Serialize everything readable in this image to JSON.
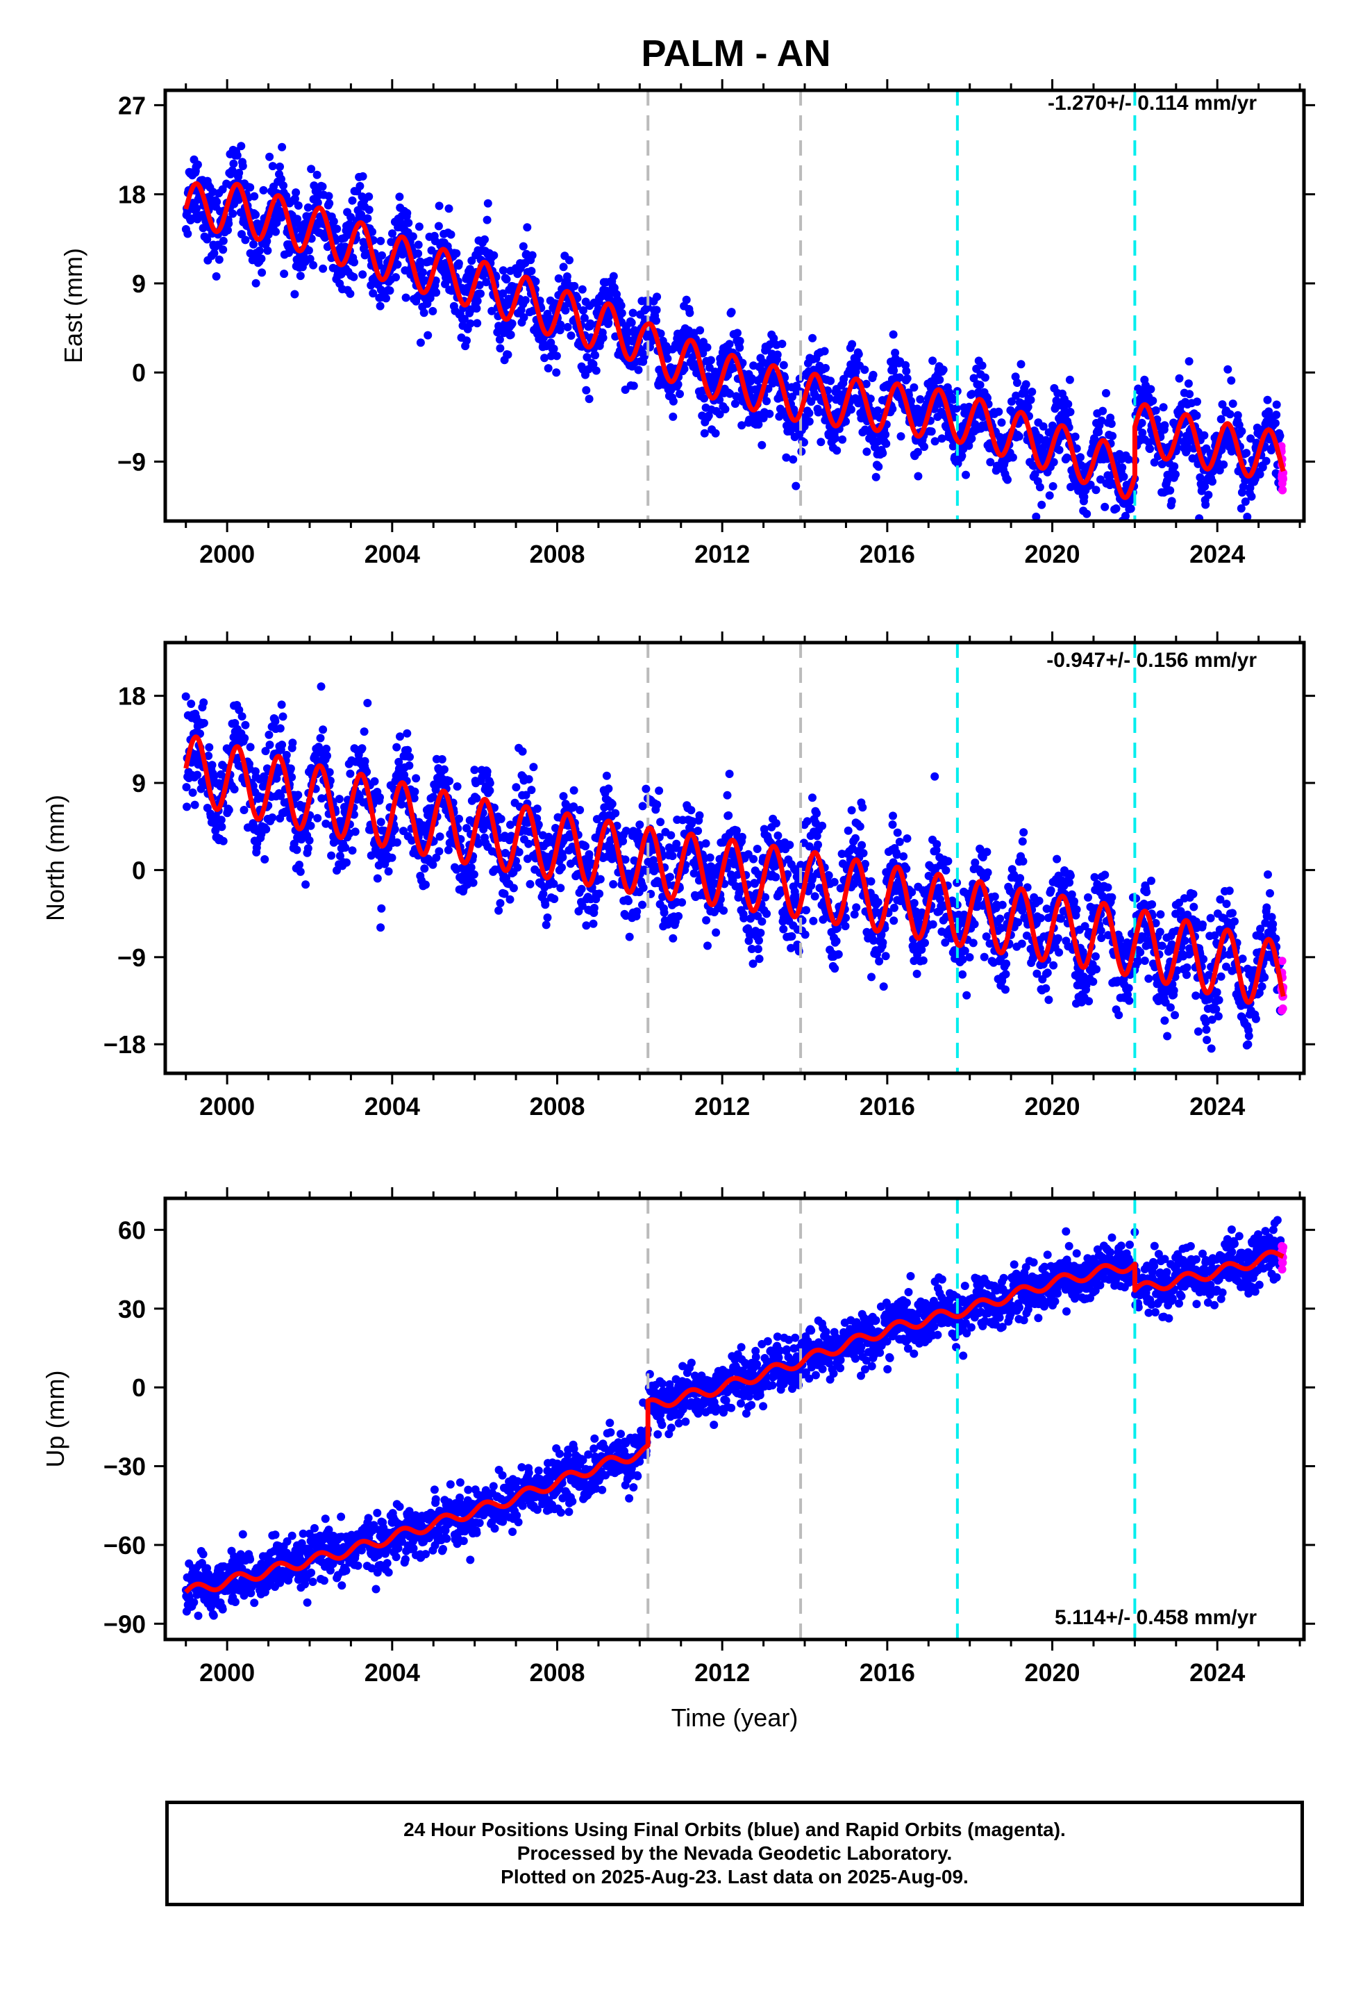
{
  "title": "PALM - AN",
  "colors": {
    "final_orbits": "#0000ff",
    "rapid_orbits": "#ff00ff",
    "model": "#ff0000",
    "antenna_change": "#bbbbbb",
    "event": "#00eeee"
  },
  "footer": {
    "line1": "24 Hour Positions Using Final Orbits (blue) and Rapid Orbits (magenta).",
    "line2": "Processed by the Nevada Geodetic Laboratory.",
    "line3": "Plotted on 2025-Aug-23. Last data on 2025-Aug-09."
  },
  "chart_data": [
    {
      "type": "scatter",
      "component": "east",
      "ylabel": "East (mm)",
      "xlabel": "",
      "xlim": [
        1998.5,
        2026.1
      ],
      "ylim": [
        -15,
        28.5
      ],
      "xticks": [
        2000,
        2004,
        2008,
        2012,
        2016,
        2020,
        2024
      ],
      "yticks": [
        -9,
        0,
        9,
        18,
        27
      ],
      "rate_label": "-1.270+/- 0.114 mm/yr",
      "data_start": 1999.0,
      "data_end": 2025.6,
      "dashed_lines": [
        {
          "x": 2010.2,
          "color": "#bbbbbb"
        },
        {
          "x": 2013.9,
          "color": "#bbbbbb"
        },
        {
          "x": 2017.7,
          "color": "#00eeee"
        },
        {
          "x": 2022.0,
          "color": "#00eeee"
        }
      ],
      "model_trend": [
        [
          1999.0,
          16.5
        ],
        [
          2000.0,
          16.8
        ],
        [
          2002.0,
          14.5
        ],
        [
          2004.0,
          11.5
        ],
        [
          2006.0,
          9.0
        ],
        [
          2008.0,
          6.0
        ],
        [
          2010.0,
          3.5
        ],
        [
          2010.2,
          2.5
        ],
        [
          2012.0,
          -0.5
        ],
        [
          2013.9,
          -2.5
        ],
        [
          2016.0,
          -3.5
        ],
        [
          2017.7,
          -4.5
        ],
        [
          2020.0,
          -7.5
        ],
        [
          2022.0,
          -10.5
        ],
        [
          2022.0,
          -5.5
        ],
        [
          2024.0,
          -7.5
        ],
        [
          2025.6,
          -8.5
        ]
      ],
      "seasonal_amplitude": 2.5,
      "scatter_sd": 2.0
    },
    {
      "type": "scatter",
      "component": "north",
      "ylabel": "North (mm)",
      "xlabel": "",
      "xlim": [
        1998.5,
        2026.1
      ],
      "ylim": [
        -21,
        23.5
      ],
      "xticks": [
        2000,
        2004,
        2008,
        2012,
        2016,
        2020,
        2024
      ],
      "yticks": [
        -18,
        -9,
        0,
        9,
        18
      ],
      "rate_label": "-0.947+/- 0.156 mm/yr",
      "data_start": 1999.0,
      "data_end": 2025.6,
      "dashed_lines": [
        {
          "x": 2010.2,
          "color": "#bbbbbb"
        },
        {
          "x": 2013.9,
          "color": "#bbbbbb"
        },
        {
          "x": 2017.7,
          "color": "#00eeee"
        },
        {
          "x": 2022.0,
          "color": "#00eeee"
        }
      ],
      "model_trend": [
        [
          1999.0,
          10.5
        ],
        [
          2002.0,
          7.5
        ],
        [
          2006.0,
          4.0
        ],
        [
          2010.0,
          1.0
        ],
        [
          2014.0,
          -1.5
        ],
        [
          2018.0,
          -4.5
        ],
        [
          2022.0,
          -7.5
        ],
        [
          2025.6,
          -11.0
        ]
      ],
      "seasonal_amplitude": 3.5,
      "scatter_sd": 2.5
    },
    {
      "type": "scatter",
      "component": "up",
      "ylabel": "Up (mm)",
      "xlabel": "Time (year)",
      "xlim": [
        1998.5,
        2026.1
      ],
      "ylim": [
        -96,
        72
      ],
      "xticks": [
        2000,
        2004,
        2008,
        2012,
        2016,
        2020,
        2024
      ],
      "yticks": [
        -90,
        -60,
        -30,
        0,
        30,
        60
      ],
      "rate_label": "5.114+/- 0.458 mm/yr",
      "data_start": 1999.0,
      "data_end": 2025.6,
      "dashed_lines": [
        {
          "x": 2010.2,
          "color": "#bbbbbb"
        },
        {
          "x": 2013.9,
          "color": "#bbbbbb"
        },
        {
          "x": 2017.7,
          "color": "#00eeee"
        },
        {
          "x": 2022.0,
          "color": "#00eeee"
        }
      ],
      "model_trend": [
        [
          1999.0,
          -78
        ],
        [
          2001.0,
          -70
        ],
        [
          2003.0,
          -62
        ],
        [
          2005.0,
          -52
        ],
        [
          2007.0,
          -42
        ],
        [
          2009.0,
          -30
        ],
        [
          2010.2,
          -24
        ],
        [
          2010.2,
          -7
        ],
        [
          2012.0,
          0
        ],
        [
          2013.9,
          10
        ],
        [
          2016.0,
          22
        ],
        [
          2018.0,
          30
        ],
        [
          2020.0,
          40
        ],
        [
          2022.0,
          47
        ],
        [
          2022.0,
          37
        ],
        [
          2024.0,
          44
        ],
        [
          2025.6,
          51
        ]
      ],
      "seasonal_amplitude": 2.0,
      "scatter_sd": 5.0
    }
  ]
}
